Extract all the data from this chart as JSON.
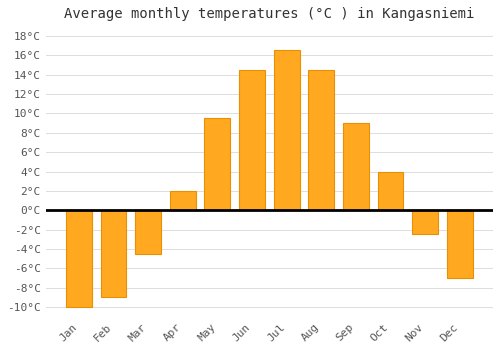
{
  "title": "Average monthly temperatures (°C ) in Kangasniemi",
  "months": [
    "Jan",
    "Feb",
    "Mar",
    "Apr",
    "May",
    "Jun",
    "Jul",
    "Aug",
    "Sep",
    "Oct",
    "Nov",
    "Dec"
  ],
  "values": [
    -10.0,
    -9.0,
    -4.5,
    2.0,
    9.5,
    14.5,
    16.5,
    14.5,
    9.0,
    4.0,
    -2.5,
    -7.0
  ],
  "bar_color": "#FFA820",
  "bar_edge_color": "#E89000",
  "background_color": "#FFFFFF",
  "grid_color": "#DDDDDD",
  "ylim": [
    -11,
    19
  ],
  "yticks": [
    -10,
    -8,
    -6,
    -4,
    -2,
    0,
    2,
    4,
    6,
    8,
    10,
    12,
    14,
    16,
    18
  ],
  "ytick_labels": [
    "-10°C",
    "-8°C",
    "-6°C",
    "-4°C",
    "-2°C",
    "0°C",
    "2°C",
    "4°C",
    "6°C",
    "8°C",
    "10°C",
    "12°C",
    "14°C",
    "16°C",
    "18°C"
  ],
  "title_fontsize": 10,
  "tick_fontsize": 8,
  "bar_width": 0.75
}
